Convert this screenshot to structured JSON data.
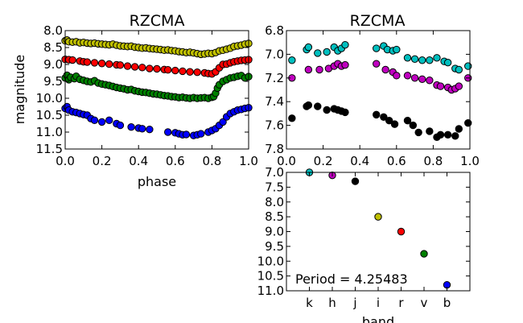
{
  "chart_data": [
    {
      "id": "left",
      "type": "scatter",
      "title": "RZCMA",
      "xlabel": "phase",
      "ylabel": "magnitude",
      "xlim": [
        0.0,
        1.0
      ],
      "ylim": [
        11.5,
        8.0
      ],
      "y_inverted": true,
      "xticks": [
        "0.0",
        "0.2",
        "0.4",
        "0.6",
        "0.8",
        "1.0"
      ],
      "xtick_values": [
        0.0,
        0.2,
        0.4,
        0.6,
        0.8,
        1.0
      ],
      "yticks": [
        "8.0",
        "8.5",
        "9.0",
        "9.5",
        "10.0",
        "10.5",
        "11.0",
        "11.5"
      ],
      "ytick_values": [
        8.0,
        8.5,
        9.0,
        9.5,
        10.0,
        10.5,
        11.0,
        11.5
      ],
      "grid": false,
      "series": [
        {
          "color": "#bfbf00",
          "x": [
            0.0,
            0.01,
            0.02,
            0.04,
            0.06,
            0.08,
            0.1,
            0.12,
            0.14,
            0.16,
            0.18,
            0.2,
            0.22,
            0.24,
            0.26,
            0.28,
            0.3,
            0.32,
            0.34,
            0.36,
            0.38,
            0.4,
            0.42,
            0.44,
            0.46,
            0.48,
            0.5,
            0.52,
            0.54,
            0.56,
            0.58,
            0.6,
            0.62,
            0.64,
            0.66,
            0.68,
            0.7,
            0.72,
            0.74,
            0.76,
            0.78,
            0.8,
            0.82,
            0.84,
            0.86,
            0.88,
            0.9,
            0.92,
            0.94,
            0.96,
            0.98,
            1.0
          ],
          "y": [
            8.3,
            8.28,
            8.33,
            8.34,
            8.33,
            8.36,
            8.35,
            8.37,
            8.38,
            8.37,
            8.39,
            8.4,
            8.41,
            8.42,
            8.4,
            8.43,
            8.45,
            8.46,
            8.47,
            8.46,
            8.49,
            8.5,
            8.52,
            8.51,
            8.53,
            8.54,
            8.55,
            8.56,
            8.58,
            8.57,
            8.59,
            8.6,
            8.62,
            8.63,
            8.65,
            8.64,
            8.66,
            8.68,
            8.7,
            8.69,
            8.67,
            8.68,
            8.65,
            8.6,
            8.58,
            8.55,
            8.52,
            8.47,
            8.45,
            8.43,
            8.4,
            8.38
          ]
        },
        {
          "color": "#ff0000",
          "x": [
            0.0,
            0.02,
            0.04,
            0.08,
            0.1,
            0.12,
            0.16,
            0.2,
            0.24,
            0.28,
            0.3,
            0.34,
            0.38,
            0.42,
            0.46,
            0.5,
            0.54,
            0.56,
            0.6,
            0.64,
            0.68,
            0.72,
            0.76,
            0.78,
            0.8,
            0.82,
            0.84,
            0.86,
            0.88,
            0.9,
            0.92,
            0.94,
            0.96,
            0.98,
            1.0
          ],
          "y": [
            8.85,
            8.86,
            8.87,
            8.9,
            8.92,
            8.93,
            8.95,
            8.97,
            8.99,
            9.01,
            9.02,
            9.05,
            9.07,
            9.09,
            9.12,
            9.13,
            9.15,
            9.16,
            9.18,
            9.2,
            9.22,
            9.23,
            9.25,
            9.27,
            9.28,
            9.22,
            9.1,
            9.0,
            8.99,
            8.95,
            8.92,
            8.9,
            8.88,
            8.87,
            8.86
          ]
        },
        {
          "color": "#008000",
          "x": [
            0.0,
            0.01,
            0.02,
            0.03,
            0.05,
            0.06,
            0.08,
            0.1,
            0.12,
            0.14,
            0.16,
            0.18,
            0.2,
            0.22,
            0.24,
            0.26,
            0.28,
            0.3,
            0.32,
            0.34,
            0.36,
            0.38,
            0.4,
            0.42,
            0.44,
            0.46,
            0.48,
            0.5,
            0.52,
            0.54,
            0.56,
            0.58,
            0.6,
            0.62,
            0.64,
            0.66,
            0.68,
            0.7,
            0.72,
            0.74,
            0.76,
            0.78,
            0.8,
            0.81,
            0.82,
            0.83,
            0.84,
            0.86,
            0.88,
            0.9,
            0.92,
            0.94,
            0.96,
            0.98,
            1.0
          ],
          "y": [
            9.4,
            9.32,
            9.45,
            9.38,
            9.42,
            9.35,
            9.44,
            9.47,
            9.5,
            9.52,
            9.48,
            9.55,
            9.58,
            9.6,
            9.62,
            9.65,
            9.68,
            9.7,
            9.72,
            9.75,
            9.74,
            9.78,
            9.8,
            9.82,
            9.83,
            9.85,
            9.87,
            9.88,
            9.9,
            9.92,
            9.93,
            9.95,
            9.96,
            9.98,
            9.97,
            9.99,
            10.0,
            9.98,
            10.0,
            9.99,
            9.98,
            10.0,
            9.97,
            9.95,
            9.85,
            9.7,
            9.6,
            9.5,
            9.45,
            9.4,
            9.38,
            9.35,
            9.33,
            9.4,
            9.36
          ]
        },
        {
          "color": "#0000ff",
          "x": [
            0.0,
            0.01,
            0.02,
            0.04,
            0.06,
            0.08,
            0.1,
            0.12,
            0.14,
            0.16,
            0.2,
            0.24,
            0.28,
            0.3,
            0.36,
            0.4,
            0.42,
            0.46,
            0.56,
            0.6,
            0.62,
            0.64,
            0.66,
            0.7,
            0.72,
            0.74,
            0.78,
            0.8,
            0.82,
            0.84,
            0.86,
            0.88,
            0.9,
            0.92,
            0.94,
            0.96,
            0.98,
            1.0
          ],
          "y": [
            10.3,
            10.25,
            10.35,
            10.4,
            10.42,
            10.45,
            10.48,
            10.5,
            10.6,
            10.65,
            10.7,
            10.65,
            10.75,
            10.8,
            10.85,
            10.88,
            10.9,
            10.92,
            11.0,
            11.02,
            11.05,
            11.08,
            11.07,
            11.1,
            11.08,
            11.05,
            11.0,
            10.95,
            10.9,
            10.8,
            10.7,
            10.55,
            10.45,
            10.4,
            10.35,
            10.33,
            10.3,
            10.28
          ]
        }
      ]
    },
    {
      "id": "right",
      "type": "scatter",
      "title": "RZCMA",
      "xlim": [
        0.0,
        1.0
      ],
      "ylim": [
        7.8,
        6.8
      ],
      "y_inverted": true,
      "xticks": [
        "0.0",
        "0.2",
        "0.4",
        "0.6",
        "0.8",
        "1.0"
      ],
      "xtick_values": [
        0.0,
        0.2,
        0.4,
        0.6,
        0.8,
        1.0
      ],
      "yticks": [
        "6.8",
        "7.0",
        "7.2",
        "7.4",
        "7.6",
        "7.8"
      ],
      "ytick_values": [
        6.8,
        7.0,
        7.2,
        7.4,
        7.6,
        7.8
      ],
      "grid": false,
      "series": [
        {
          "color": "#00bfbf",
          "x": [
            0.03,
            0.11,
            0.12,
            0.17,
            0.22,
            0.26,
            0.28,
            0.3,
            0.32,
            0.49,
            0.53,
            0.55,
            0.58,
            0.6,
            0.66,
            0.7,
            0.74,
            0.78,
            0.82,
            0.86,
            0.88,
            0.92,
            0.94,
            0.99
          ],
          "y": [
            7.05,
            6.96,
            6.94,
            6.99,
            6.98,
            6.94,
            6.97,
            6.95,
            6.92,
            6.95,
            6.93,
            6.96,
            6.97,
            6.96,
            7.03,
            7.04,
            7.05,
            7.05,
            7.03,
            7.06,
            7.07,
            7.12,
            7.13,
            7.1
          ],
          "y_note": "values above top of axis are clipped"
        },
        {
          "color": "#bf00bf",
          "x": [
            0.03,
            0.12,
            0.18,
            0.23,
            0.26,
            0.28,
            0.3,
            0.32,
            0.49,
            0.54,
            0.58,
            0.6,
            0.66,
            0.7,
            0.74,
            0.78,
            0.82,
            0.84,
            0.88,
            0.9,
            0.92,
            0.94,
            0.99
          ],
          "y": [
            7.2,
            7.13,
            7.13,
            7.12,
            7.1,
            7.08,
            7.1,
            7.09,
            7.08,
            7.13,
            7.15,
            7.18,
            7.18,
            7.2,
            7.21,
            7.22,
            7.26,
            7.27,
            7.28,
            7.3,
            7.29,
            7.27,
            7.2
          ]
        },
        {
          "color": "#000000",
          "x": [
            0.03,
            0.11,
            0.12,
            0.17,
            0.22,
            0.26,
            0.28,
            0.3,
            0.32,
            0.49,
            0.53,
            0.56,
            0.59,
            0.66,
            0.69,
            0.72,
            0.78,
            0.82,
            0.84,
            0.88,
            0.92,
            0.94,
            0.99
          ],
          "y": [
            7.54,
            7.44,
            7.43,
            7.44,
            7.47,
            7.46,
            7.47,
            7.48,
            7.49,
            7.51,
            7.53,
            7.56,
            7.59,
            7.56,
            7.6,
            7.66,
            7.65,
            7.7,
            7.68,
            7.68,
            7.69,
            7.63,
            7.58
          ]
        }
      ]
    },
    {
      "id": "bottom",
      "type": "scatter",
      "xlabel": "band",
      "categories": [
        "k",
        "h",
        "j",
        "i",
        "r",
        "v",
        "b"
      ],
      "ylim": [
        11.0,
        7.0
      ],
      "y_inverted": true,
      "yticks": [
        "7.0",
        "7.5",
        "8.0",
        "8.5",
        "9.0",
        "9.5",
        "10.0",
        "10.5",
        "11.0"
      ],
      "ytick_values": [
        7.0,
        7.5,
        8.0,
        8.5,
        9.0,
        9.5,
        10.0,
        10.5,
        11.0
      ],
      "grid": false,
      "points": [
        {
          "band": "k",
          "value": 7.0,
          "color": "#00bfbf"
        },
        {
          "band": "h",
          "value": 7.1,
          "color": "#bf00bf"
        },
        {
          "band": "j",
          "value": 7.3,
          "color": "#000000"
        },
        {
          "band": "i",
          "value": 8.5,
          "color": "#bfbf00"
        },
        {
          "band": "r",
          "value": 9.0,
          "color": "#ff0000"
        },
        {
          "band": "v",
          "value": 9.75,
          "color": "#008000"
        },
        {
          "band": "b",
          "value": 10.8,
          "color": "#0000ff"
        }
      ],
      "annotation": "Period = 4.25483"
    }
  ]
}
